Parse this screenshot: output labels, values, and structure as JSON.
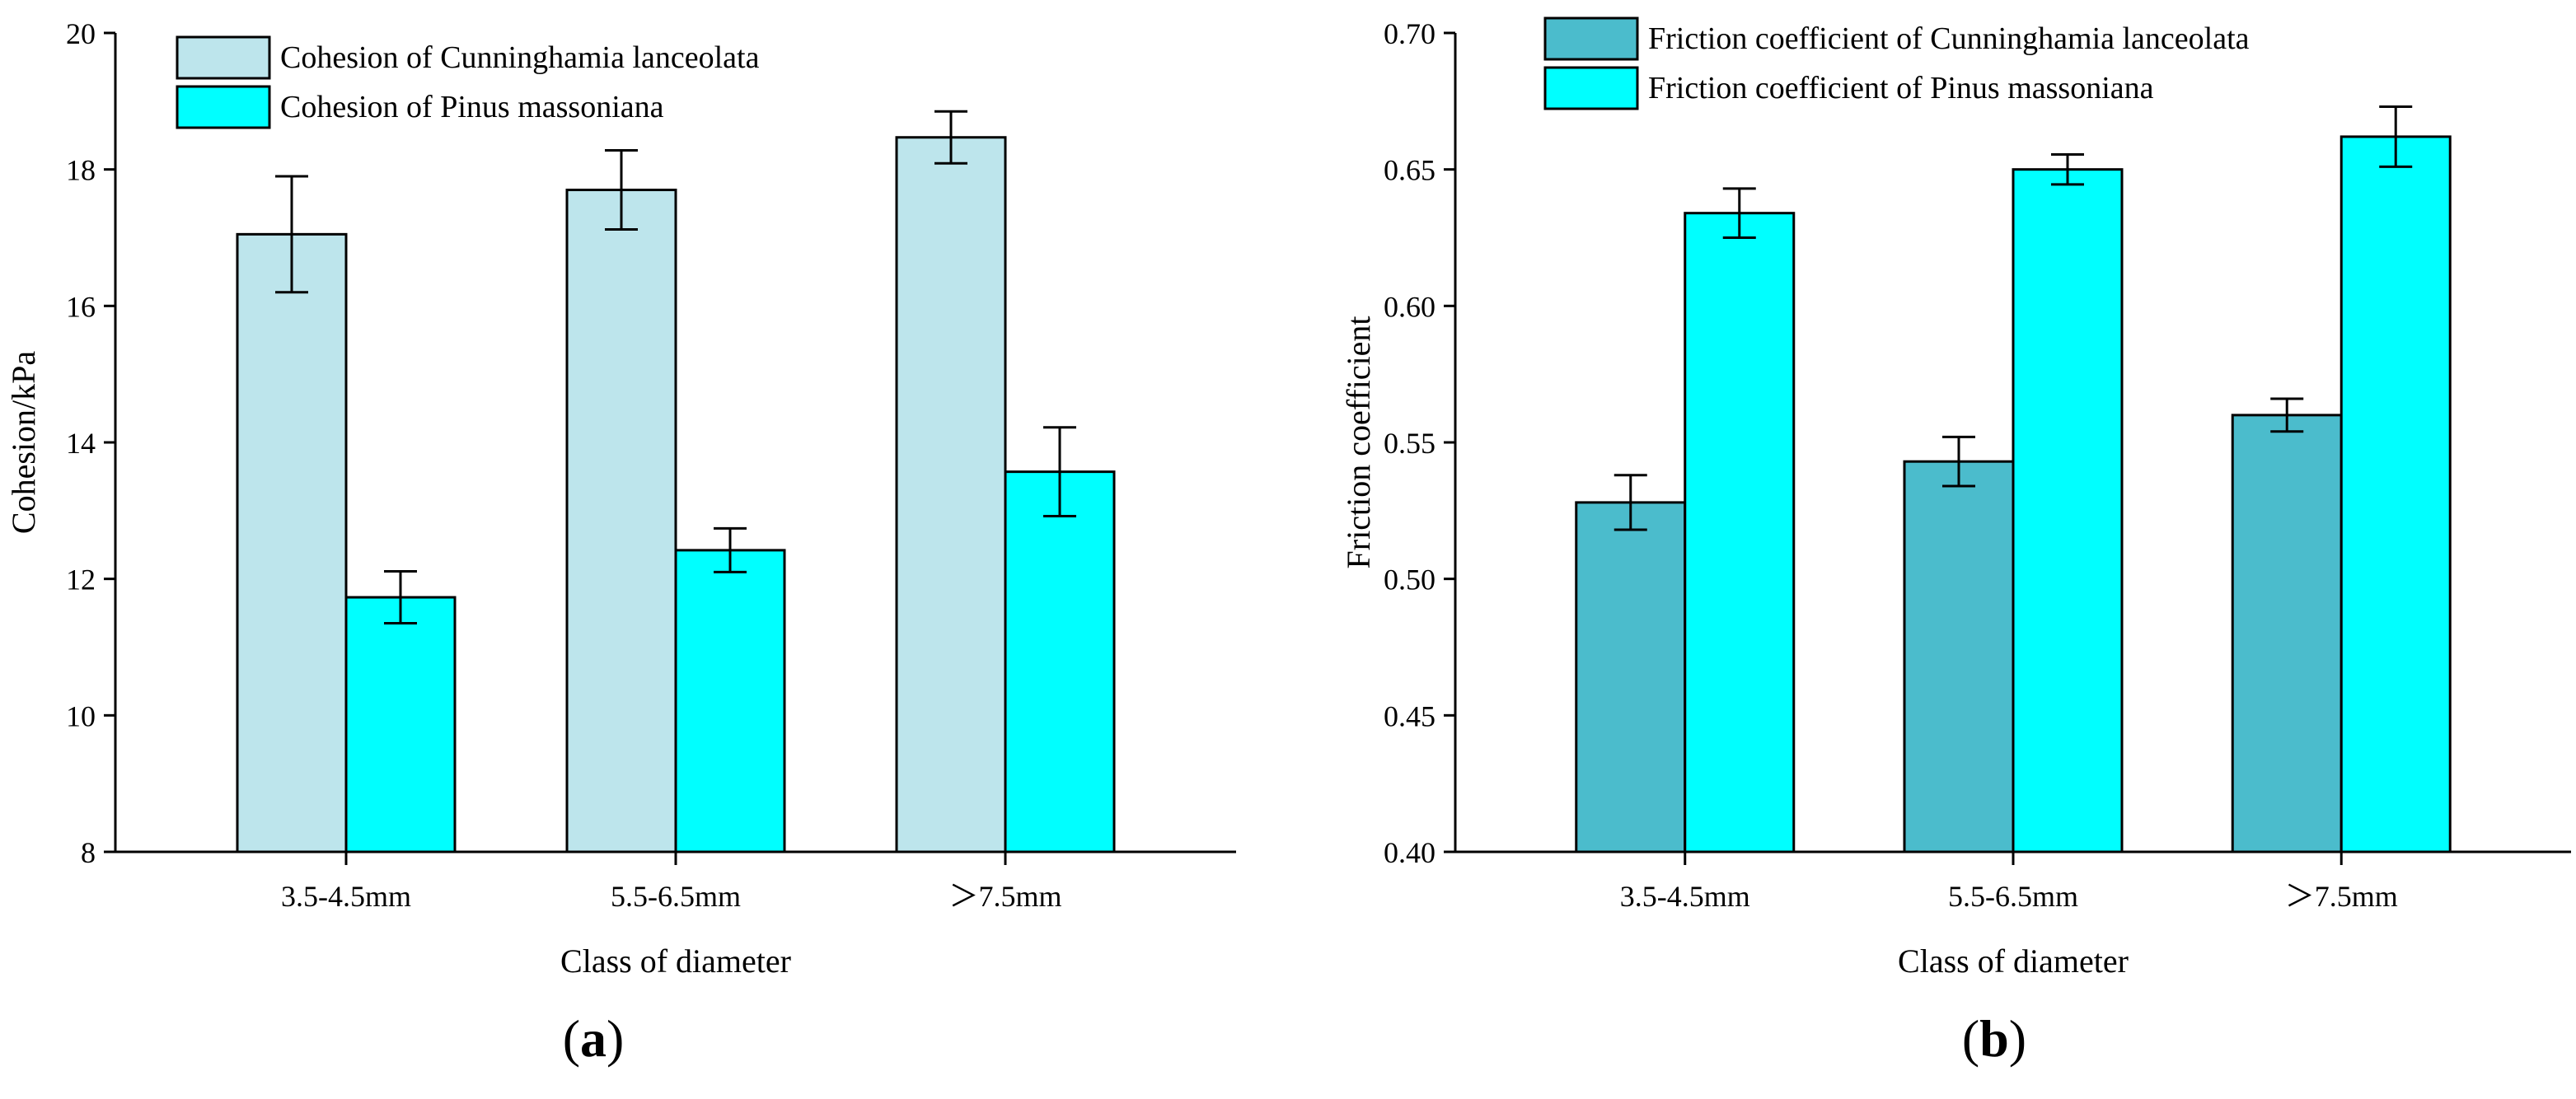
{
  "chart_data": [
    {
      "panel": "(a)",
      "panel_letter": "a",
      "type": "bar",
      "xlabel": "Class of diameter",
      "ylabel": "Cohesion/kPa",
      "ylim": [
        8,
        20
      ],
      "yticks": [
        "8",
        "10",
        "12",
        "14",
        "16",
        "18",
        "20"
      ],
      "categories": [
        "3.5-4.5mm",
        "5.5-6.5mm",
        "＞7.5mm"
      ],
      "legend_position": "top-left",
      "series": [
        {
          "name": "Cohesion of Cunninghamia lanceolata",
          "color": "#bde5ec",
          "values": [
            17.05,
            17.7,
            18.47
          ],
          "errors": [
            0.85,
            0.58,
            0.38
          ]
        },
        {
          "name": "Cohesion of Pinus massoniana",
          "color": "#00ffff",
          "values": [
            11.73,
            12.42,
            13.57
          ],
          "errors": [
            0.38,
            0.32,
            0.65
          ]
        }
      ]
    },
    {
      "panel": "(b)",
      "panel_letter": "b",
      "type": "bar",
      "xlabel": "Class of diameter",
      "ylabel": "Friction coefficient",
      "ylim": [
        0.4,
        0.7
      ],
      "yticks": [
        "0.40",
        "0.45",
        "0.50",
        "0.55",
        "0.60",
        "0.65",
        "0.70"
      ],
      "categories": [
        "3.5-4.5mm",
        "5.5-6.5mm",
        "＞7.5mm"
      ],
      "legend_position": "top-left",
      "series": [
        {
          "name": "Friction coefficient of Cunninghamia lanceolata",
          "color": "#4bbccc",
          "values": [
            0.528,
            0.543,
            0.56
          ],
          "errors": [
            0.01,
            0.009,
            0.006
          ]
        },
        {
          "name": "Friction coefficient of Pinus massoniana",
          "color": "#00ffff",
          "values": [
            0.634,
            0.65,
            0.662
          ],
          "errors": [
            0.009,
            0.0055,
            0.011
          ]
        }
      ]
    }
  ]
}
